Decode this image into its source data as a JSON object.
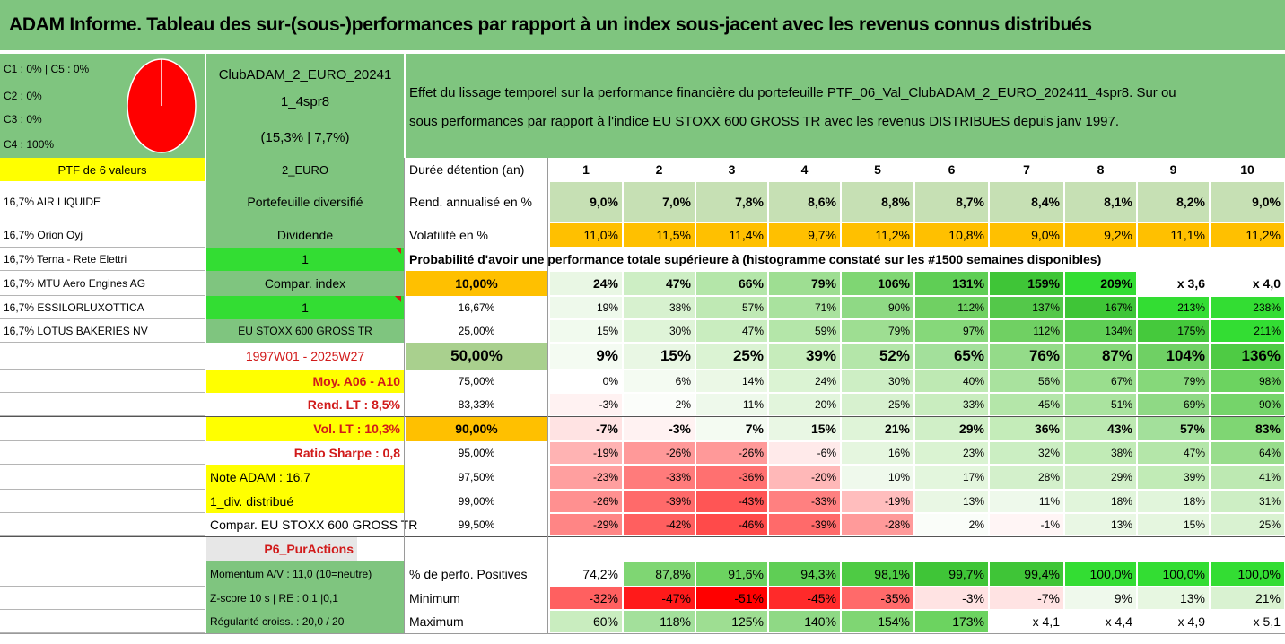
{
  "title": "ADAM Informe. Tableau des sur-(sous-)performances par rapport à un index sous-jacent avec les revenus connus distribués",
  "colors": {
    "green_header": "#7fc57f",
    "yellow": "#ffff00",
    "orange": "#ffc000",
    "bright_green": "#33dd33",
    "pale_green": "#c6e0b4",
    "red": "#ff0000"
  },
  "pie": {
    "legend": [
      "C1 : 0% | C5 : 0%",
      "C2 : 0%",
      "C3 : 0%",
      "C4 : 100%"
    ],
    "values": [
      0,
      0,
      0,
      100,
      0
    ]
  },
  "fund": {
    "name_line1": "ClubADAM_2_EURO_20241",
    "name_line2": "1_4spr8",
    "name_line3": "(15,3% | 7,7%)"
  },
  "description": {
    "line1": "Effet du lissage temporel sur la performance financière du portefeuille PTF_06_Val_ClubADAM_2_EURO_202411_4spr8. Sur ou",
    "line2": "sous performances par rapport à l'indice EU STOXX 600 GROSS TR avec les revenus DISTRIBUES depuis janv 1997."
  },
  "portfolio": {
    "header": "PTF de 6 valeurs",
    "holdings": [
      "16,7% AIR LIQUIDE",
      "16,7% Orion Oyj",
      "16,7% Terna - Rete Elettri",
      "16,7% MTU Aero Engines AG",
      "16,7% ESSILORLUXOTTICA",
      "16,7% LOTUS BAKERIES NV"
    ]
  },
  "side": {
    "currency": "2_EURO",
    "diversified": "Portefeuille diversifié",
    "dividend": "Dividende",
    "div_value": "1",
    "compar_index": "Compar. index",
    "compar_value": "1",
    "index_name": "EU STOXX 600 GROSS TR",
    "period": "1997W01 - 2025W27",
    "moy": "Moy. A06 - A10",
    "rend_lt": "Rend. LT : 8,5%",
    "vol_lt": "Vol. LT : 10,3%",
    "sharpe": "Ratio Sharpe : 0,8",
    "note": "Note ADAM : 16,7",
    "div_distrib": "1_div. distribué",
    "compar_full": "Compar. EU STOXX 600 GROSS TR",
    "p6": "P6_PurActions",
    "momentum": "Momentum A/V : 11,0 (10=neutre)",
    "zscore": "Z-score 10 s | RE : 0,1 |0,1",
    "regularite": "Régularité croiss. : 20,0 / 20"
  },
  "table": {
    "duree_label": "Durée détention (an)",
    "years": [
      "1",
      "2",
      "3",
      "4",
      "5",
      "6",
      "7",
      "8",
      "9",
      "10"
    ],
    "rend_label": "Rend. annualisé en %",
    "rend": [
      "9,0%",
      "7,0%",
      "7,8%",
      "8,6%",
      "8,8%",
      "8,7%",
      "8,4%",
      "8,1%",
      "8,2%",
      "9,0%"
    ],
    "vol_label": "Volatilité en %",
    "vol": [
      "11,0%",
      "11,5%",
      "11,4%",
      "9,7%",
      "11,2%",
      "10,8%",
      "9,0%",
      "9,2%",
      "11,1%",
      "11,2%"
    ],
    "prob_title": "Probabilité d'avoir une performance totale supérieure à (histogramme constaté sur les #1500 semaines disponibles)",
    "prob_rows": [
      {
        "p": "10,00%",
        "v": [
          "24%",
          "47%",
          "66%",
          "79%",
          "106%",
          "131%",
          "159%",
          "209%",
          "x 3,6",
          "x 4,0"
        ]
      },
      {
        "p": "16,67%",
        "v": [
          "19%",
          "38%",
          "57%",
          "71%",
          "90%",
          "112%",
          "137%",
          "167%",
          "213%",
          "238%"
        ]
      },
      {
        "p": "25,00%",
        "v": [
          "15%",
          "30%",
          "47%",
          "59%",
          "79%",
          "97%",
          "112%",
          "134%",
          "175%",
          "211%"
        ]
      },
      {
        "p": "50,00%",
        "v": [
          "9%",
          "15%",
          "25%",
          "39%",
          "52%",
          "65%",
          "76%",
          "87%",
          "104%",
          "136%"
        ]
      },
      {
        "p": "75,00%",
        "v": [
          "0%",
          "6%",
          "14%",
          "24%",
          "30%",
          "40%",
          "56%",
          "67%",
          "79%",
          "98%"
        ]
      },
      {
        "p": "83,33%",
        "v": [
          "-3%",
          "2%",
          "11%",
          "20%",
          "25%",
          "33%",
          "45%",
          "51%",
          "69%",
          "90%"
        ]
      },
      {
        "p": "90,00%",
        "v": [
          "-7%",
          "-3%",
          "7%",
          "15%",
          "21%",
          "29%",
          "36%",
          "43%",
          "57%",
          "83%"
        ]
      },
      {
        "p": "95,00%",
        "v": [
          "-19%",
          "-26%",
          "-26%",
          "-6%",
          "16%",
          "23%",
          "32%",
          "38%",
          "47%",
          "64%"
        ]
      },
      {
        "p": "97,50%",
        "v": [
          "-23%",
          "-33%",
          "-36%",
          "-20%",
          "10%",
          "17%",
          "28%",
          "29%",
          "39%",
          "41%"
        ]
      },
      {
        "p": "99,00%",
        "v": [
          "-26%",
          "-39%",
          "-43%",
          "-33%",
          "-19%",
          "13%",
          "11%",
          "18%",
          "18%",
          "31%"
        ]
      },
      {
        "p": "99,50%",
        "v": [
          "-29%",
          "-42%",
          "-46%",
          "-39%",
          "-28%",
          "2%",
          "-1%",
          "13%",
          "15%",
          "25%"
        ]
      }
    ],
    "pos_label": "% de perfo. Positives",
    "pos": [
      "74,2%",
      "87,8%",
      "91,6%",
      "94,3%",
      "98,1%",
      "99,7%",
      "99,4%",
      "100,0%",
      "100,0%",
      "100,0%"
    ],
    "min_label": "Minimum",
    "min": [
      "-32%",
      "-47%",
      "-51%",
      "-45%",
      "-35%",
      "-3%",
      "-7%",
      "9%",
      "13%",
      "21%"
    ],
    "max_label": "Maximum",
    "max": [
      "60%",
      "118%",
      "125%",
      "140%",
      "154%",
      "173%",
      "x 4,1",
      "x 4,4",
      "x 4,9",
      "x 5,1"
    ]
  },
  "fills": {
    "rend": [
      "#c6e0b4",
      "#c6e0b4",
      "#c6e0b4",
      "#c6e0b4",
      "#c6e0b4",
      "#c6e0b4",
      "#c6e0b4",
      "#c6e0b4",
      "#c6e0b4",
      "#c6e0b4"
    ],
    "vol": [
      "#ffc000",
      "#ffc000",
      "#ffc000",
      "#ffc000",
      "#ffc000",
      "#ffc000",
      "#ffc000",
      "#ffc000",
      "#ffc000",
      "#ffc000"
    ],
    "prob": [
      [
        "#e9f7e4",
        "#cdeec4",
        "#b4e6a9",
        "#9ede92",
        "#7fd673",
        "#5fce55",
        "#3fc537",
        "#33dd33",
        "#ffffff",
        "#ffffff"
      ],
      [
        "#eef9eb",
        "#d7f1cf",
        "#bfe9b4",
        "#a9e29e",
        "#8fd985",
        "#70d063",
        "#54c84a",
        "#3fc537",
        "#33dd33",
        "#33dd33"
      ],
      [
        "#f1faee",
        "#dff4d8",
        "#c9edbf",
        "#b4e6a9",
        "#9ede92",
        "#86d87a",
        "#70d063",
        "#5fce55",
        "#45c93c",
        "#33dd33"
      ],
      [
        "#f4fbf2",
        "#e9f7e4",
        "#dbf3d3",
        "#c6ecbb",
        "#b4e6a9",
        "#a3e09b",
        "#94db89",
        "#86d87a",
        "#6fd064",
        "#4ecb44"
      ],
      [
        "#ffffff",
        "#f4fbf2",
        "#ebf8e6",
        "#dbf3d3",
        "#cdeec4",
        "#bee9b3",
        "#a9e29e",
        "#9ade8e",
        "#86d87a",
        "#6cd360"
      ],
      [
        "#fff2f2",
        "#fbfdfa",
        "#eef9eb",
        "#e2f5dc",
        "#d7f1cf",
        "#c9edbf",
        "#b4e6a9",
        "#aae39f",
        "#8fd985",
        "#75d46a"
      ],
      [
        "#ffe3e3",
        "#fff2f2",
        "#f4fbf2",
        "#e9f7e4",
        "#dff4d8",
        "#d0efc7",
        "#c4ecb9",
        "#bde9b2",
        "#a3e09b",
        "#7fd673"
      ],
      [
        "#ffb3b3",
        "#ff9999",
        "#ff9999",
        "#ffeaea",
        "#e5f6df",
        "#daf3d2",
        "#cbeec2",
        "#c1ebb6",
        "#b4e6a9",
        "#98dd8c"
      ],
      [
        "#ff9f9f",
        "#ff7b7b",
        "#ff7070",
        "#ffb8b8",
        "#eff9ec",
        "#e3f6dd",
        "#d3f0cb",
        "#d1efc8",
        "#c1ebb6",
        "#bde9b2"
      ],
      [
        "#ff9090",
        "#ff6a6a",
        "#ff5555",
        "#ff8080",
        "#ffbdbd",
        "#e9f7e4",
        "#eef9eb",
        "#e1f5db",
        "#e1f5db",
        "#cdeec4"
      ],
      [
        "#ff8585",
        "#ff5f5f",
        "#ff4a4a",
        "#ff6a6a",
        "#ff9a9a",
        "#fafdf9",
        "#fff5f5",
        "#e9f7e4",
        "#e5f6df",
        "#d9f2d1"
      ]
    ],
    "pos": [
      "#ffffff",
      "#7fd673",
      "#6cd360",
      "#5fce55",
      "#4ecb44",
      "#3fc537",
      "#3fc537",
      "#33dd33",
      "#33dd33",
      "#33dd33"
    ],
    "min": [
      "#ff6060",
      "#ff1a1a",
      "#ff0000",
      "#ff2a2a",
      "#ff6a6a",
      "#ffe3e3",
      "#ffe3e3",
      "#eff9ec",
      "#e7f7e1",
      "#d9f2d1"
    ],
    "max": [
      "#c9edbf",
      "#a3e09b",
      "#9ede92",
      "#8fd985",
      "#7fd673",
      "#6cd360",
      "#ffffff",
      "#ffffff",
      "#ffffff",
      "#ffffff"
    ]
  }
}
